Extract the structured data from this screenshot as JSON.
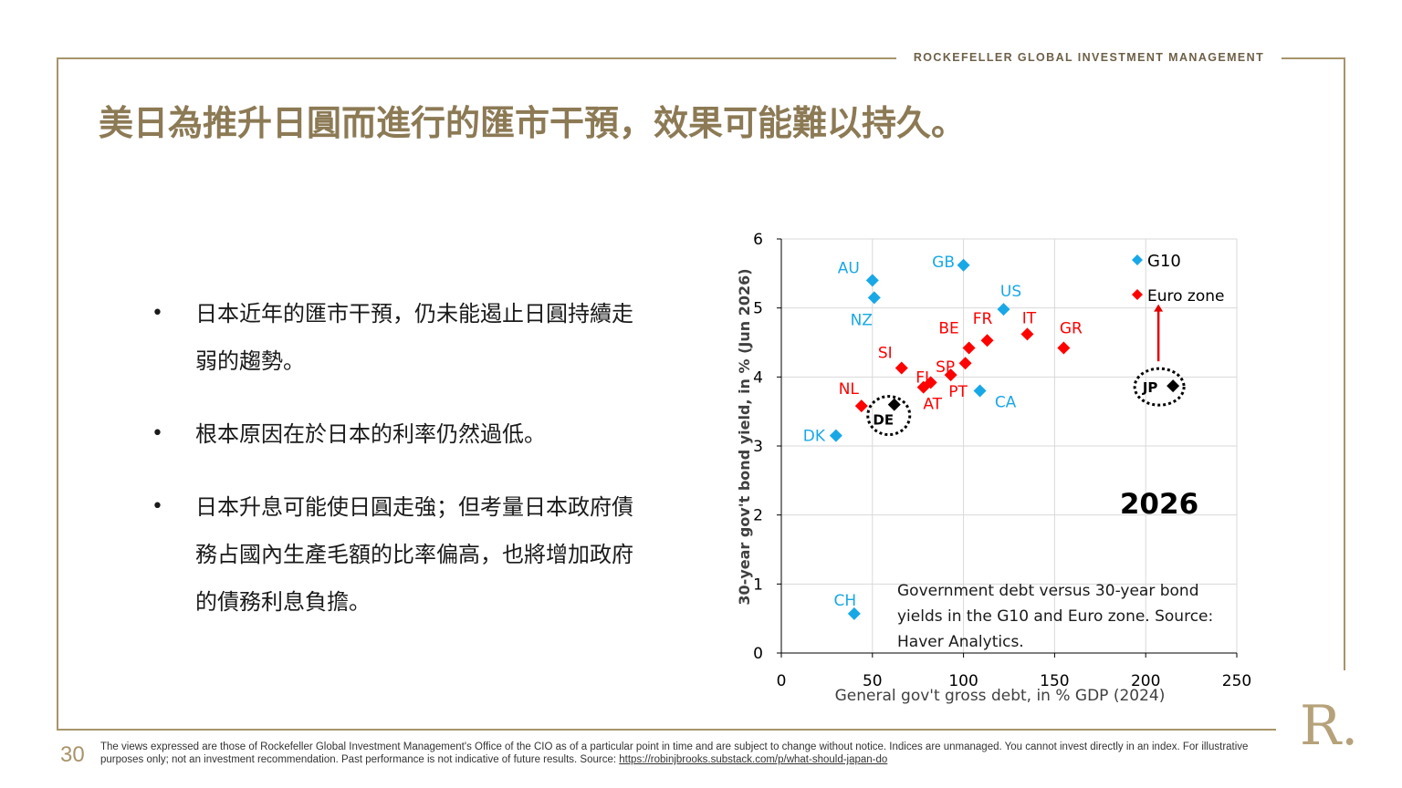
{
  "header": {
    "brand": "ROCKEFELLER GLOBAL INVESTMENT MANAGEMENT",
    "title": "美日為推升日圓而進行的匯市干預，效果可能難以持久。"
  },
  "bullets": [
    "日本近年的匯市干預，仍未能遏止日圓持續走弱的趨勢。",
    "根本原因在於日本的利率仍然過低。",
    "日本升息可能使日圓走強；但考量日本政府債務占國內生產毛額的比率偏高，也將增加政府的債務利息負擔。"
  ],
  "chart_data": {
    "type": "scatter",
    "title": "",
    "xlabel": "General gov't gross debt, in % GDP (2024)",
    "ylabel": "30-year gov't bond yield, in % (Jun 2026)",
    "xlim": [
      0,
      250
    ],
    "ylim": [
      0,
      6
    ],
    "xticks": [
      "0",
      "50",
      "100",
      "150",
      "200",
      "250"
    ],
    "yticks": [
      "0",
      "1",
      "2",
      "3",
      "4",
      "5",
      "6"
    ],
    "grid": true,
    "legend_position": "top-right",
    "annotation_year": "2026",
    "note": "Government debt versus 30-year bond yields in the G10 and Euro zone. Source: Haver Analytics.",
    "series": [
      {
        "name": "G10",
        "color": "#19a8e6",
        "points": [
          {
            "label": "AU",
            "x": 50,
            "y": 5.4
          },
          {
            "label": "NZ",
            "x": 51,
            "y": 5.15
          },
          {
            "label": "GB",
            "x": 100,
            "y": 5.62
          },
          {
            "label": "US",
            "x": 122,
            "y": 4.98
          },
          {
            "label": "CA",
            "x": 109,
            "y": 3.8
          },
          {
            "label": "DK",
            "x": 30,
            "y": 3.15
          },
          {
            "label": "CH",
            "x": 40,
            "y": 0.57
          }
        ]
      },
      {
        "name": "Euro zone",
        "color": "#ff0000",
        "points": [
          {
            "label": "IT",
            "x": 135,
            "y": 4.62
          },
          {
            "label": "GR",
            "x": 155,
            "y": 4.42
          },
          {
            "label": "FR",
            "x": 113,
            "y": 4.53
          },
          {
            "label": "BE",
            "x": 103,
            "y": 4.42
          },
          {
            "label": "SP",
            "x": 101,
            "y": 4.2
          },
          {
            "label": "SI",
            "x": 66,
            "y": 4.13
          },
          {
            "label": "FI",
            "x": 82,
            "y": 3.92
          },
          {
            "label": "AT",
            "x": 78,
            "y": 3.85
          },
          {
            "label": "PT",
            "x": 93,
            "y": 4.03
          },
          {
            "label": "NL",
            "x": 44,
            "y": 3.58
          }
        ]
      },
      {
        "name": "",
        "color": "#000000",
        "points": [
          {
            "label": "DE",
            "x": 62,
            "y": 3.6
          },
          {
            "label": "JP",
            "x": 215,
            "y": 3.87
          }
        ]
      }
    ]
  },
  "footer": {
    "page_number": "30",
    "disclaimer": "The views expressed are those of Rockefeller Global Investment Management's Office of the CIO as of a particular point in time and are subject to change without notice. Indices are unmanaged. You cannot invest directly in an index. For illustrative purposes only; not an investment recommendation. Past performance is not indicative of future results. Source: ",
    "source_link": "https://robinjbrooks.substack.com/p/what-should-japan-do",
    "logo_text": "R."
  },
  "colors": {
    "accent": "#a8946a",
    "title": "#8c7a55",
    "g10": "#19a8e6",
    "euro": "#ff0000"
  }
}
